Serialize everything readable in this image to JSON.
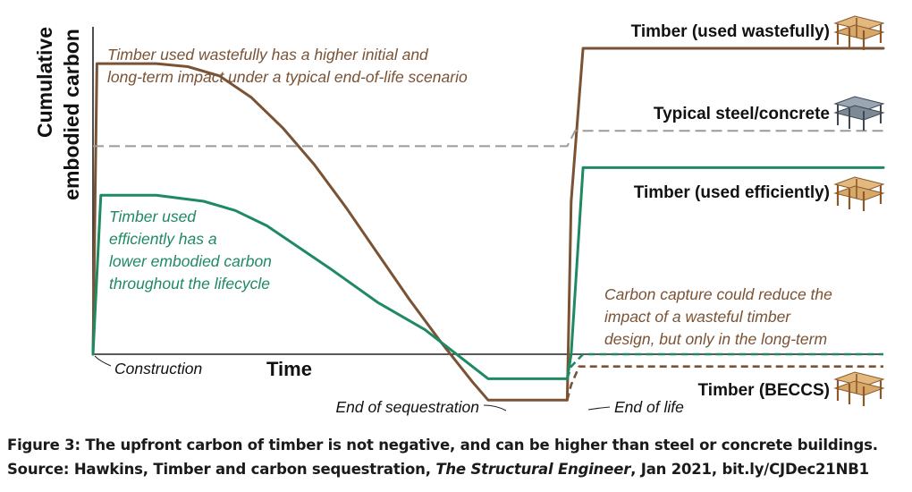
{
  "chart_data": {
    "type": "line",
    "xlabel": "Time",
    "ylabel_line1": "Cumulative",
    "ylabel_line2": "embodied carbon",
    "x_ticks": [],
    "y_ticks": [],
    "grid": false,
    "series": [
      {
        "name": "Timber (used wastefully)",
        "color": "#7a5234",
        "style": "solid",
        "x": [
          0,
          0.5,
          2,
          8,
          12,
          16,
          20,
          24,
          28,
          32,
          36,
          40,
          44,
          48,
          50,
          55,
          60,
          60.5,
          62,
          100
        ],
        "y": [
          0,
          95,
          95,
          95,
          94,
          91,
          84,
          74,
          62,
          48,
          33,
          18,
          4,
          -9,
          -15,
          -15,
          -15,
          50,
          100,
          100
        ]
      },
      {
        "name": "Typical steel/concrete",
        "color": "#9a9a9a",
        "style": "dashed",
        "x": [
          0,
          60,
          61,
          100
        ],
        "y": [
          68,
          68,
          73,
          73
        ]
      },
      {
        "name": "Timber (used efficiently)",
        "color": "#1f8a62",
        "style": "solid",
        "x": [
          0,
          1,
          2,
          8,
          14,
          18,
          22,
          26,
          30,
          36,
          42,
          50,
          60,
          60.5,
          62,
          100
        ],
        "y": [
          0,
          52,
          52,
          52,
          50,
          47,
          42,
          35,
          28,
          17,
          8,
          -8,
          -8,
          0,
          61,
          61
        ]
      },
      {
        "name": "Timber (BECCS) - efficient",
        "color": "#1f8a62",
        "style": "dashed",
        "x": [
          60,
          60.5,
          62,
          100
        ],
        "y": [
          -8,
          -4,
          0,
          0
        ]
      },
      {
        "name": "Timber (BECCS) - wasteful",
        "color": "#7a5234",
        "style": "dashed",
        "x": [
          60,
          60.5,
          61.5,
          100
        ],
        "y": [
          -15,
          -10,
          -4,
          -4
        ]
      }
    ],
    "series_labels": {
      "wasteful": "Timber (used wastefully)",
      "steel": "Typical steel/concrete",
      "efficient": "Timber (used efficiently)",
      "beccs": "Timber (BECCS)"
    },
    "annotations": {
      "wasteful_line1": "Timber used wastefully has a higher initial and",
      "wasteful_line2": "long-term impact under a typical end-of-life scenario",
      "efficient_line1": "Timber used",
      "efficient_line2": "efficiently has a",
      "efficient_line3": "lower embodied carbon",
      "efficient_line4": "throughout the lifecycle",
      "capture_line1": "Carbon capture could reduce the",
      "capture_line2": "impact of a wasteful timber",
      "capture_line3": "design, but only in the long-term",
      "construction": "Construction",
      "end_sequestration": "End of sequestration",
      "end_of_life": "End of life"
    },
    "colors": {
      "timber_wasteful": "#7a5234",
      "timber_efficient": "#1f8a62",
      "steel": "#9a9a9a",
      "wood_icon": "#d8a86a",
      "steel_icon": "#6e7b8a"
    }
  },
  "caption": {
    "line1": "Figure 3: The upfront carbon of timber is not negative, and can be higher than steel or concrete buildings.",
    "source_prefix": "Source: Hawkins, Timber and carbon sequestration, ",
    "source_journal": "The Structural Engineer",
    "source_suffix": ", Jan 2021, bit.ly/CJDec21NB1"
  },
  "icons": [
    "timber-building-icon",
    "steel-building-icon"
  ]
}
